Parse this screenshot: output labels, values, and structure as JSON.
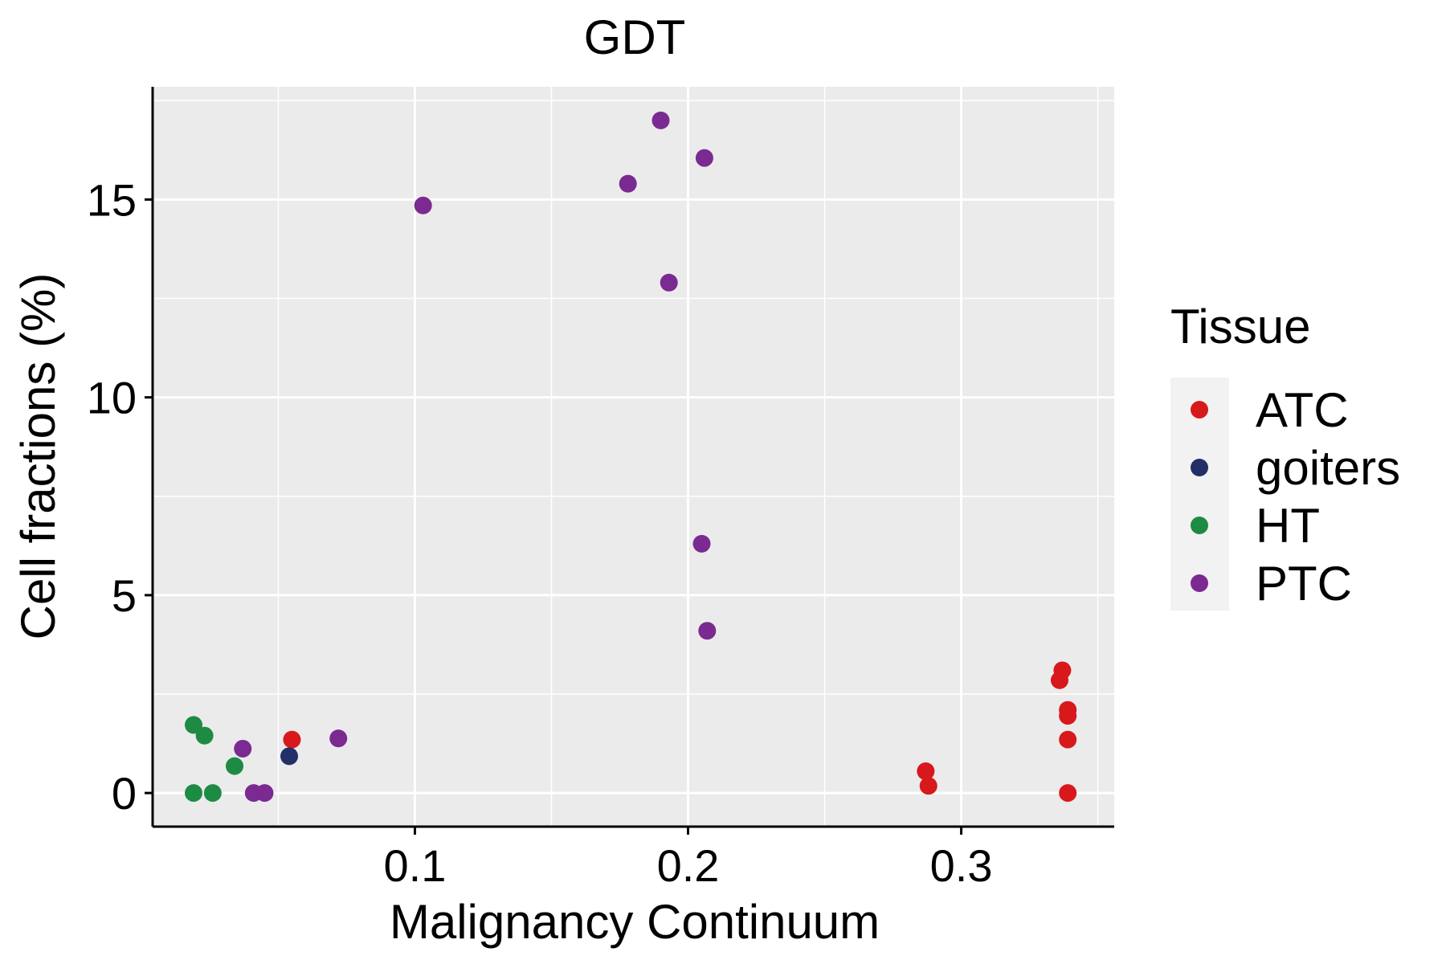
{
  "chart_data": {
    "type": "scatter",
    "title": "GDT",
    "xlabel": "Malignancy Continuum",
    "ylabel": "Cell fractions (%)",
    "xlim": [
      0.004,
      0.356
    ],
    "ylim": [
      -0.85,
      17.85
    ],
    "x_ticks": [
      0.1,
      0.2,
      0.3
    ],
    "x_tick_labels": [
      "0.1",
      "0.2",
      "0.3"
    ],
    "y_ticks": [
      0,
      5,
      10,
      15
    ],
    "y_tick_labels": [
      "0",
      "5",
      "10",
      "15"
    ],
    "x_minor": [
      0.05,
      0.15,
      0.25,
      0.35
    ],
    "y_minor": [
      2.5,
      7.5,
      12.5,
      17.5
    ],
    "grid": true,
    "legend": {
      "title": "Tissue",
      "position": "right"
    },
    "series": [
      {
        "name": "ATC",
        "color": "#d7191c",
        "points": [
          {
            "x": 0.055,
            "y": 1.35
          },
          {
            "x": 0.287,
            "y": 0.55
          },
          {
            "x": 0.288,
            "y": 0.18
          },
          {
            "x": 0.337,
            "y": 3.1
          },
          {
            "x": 0.336,
            "y": 2.85
          },
          {
            "x": 0.339,
            "y": 2.1
          },
          {
            "x": 0.339,
            "y": 1.95
          },
          {
            "x": 0.339,
            "y": 1.35
          },
          {
            "x": 0.339,
            "y": 0.0
          }
        ]
      },
      {
        "name": "goiters",
        "color": "#232f66",
        "points": [
          {
            "x": 0.054,
            "y": 0.93
          }
        ]
      },
      {
        "name": "HT",
        "color": "#1e8b45",
        "points": [
          {
            "x": 0.019,
            "y": 1.72
          },
          {
            "x": 0.023,
            "y": 1.45
          },
          {
            "x": 0.034,
            "y": 0.68
          },
          {
            "x": 0.019,
            "y": 0.0
          },
          {
            "x": 0.026,
            "y": 0.0
          }
        ]
      },
      {
        "name": "PTC",
        "color": "#7b2a91",
        "points": [
          {
            "x": 0.19,
            "y": 17.0
          },
          {
            "x": 0.206,
            "y": 16.05
          },
          {
            "x": 0.178,
            "y": 15.4
          },
          {
            "x": 0.103,
            "y": 14.85
          },
          {
            "x": 0.193,
            "y": 12.9
          },
          {
            "x": 0.205,
            "y": 6.3
          },
          {
            "x": 0.207,
            "y": 4.1
          },
          {
            "x": 0.072,
            "y": 1.38
          },
          {
            "x": 0.037,
            "y": 1.12
          },
          {
            "x": 0.041,
            "y": 0.0
          },
          {
            "x": 0.045,
            "y": 0.0
          }
        ]
      }
    ]
  }
}
